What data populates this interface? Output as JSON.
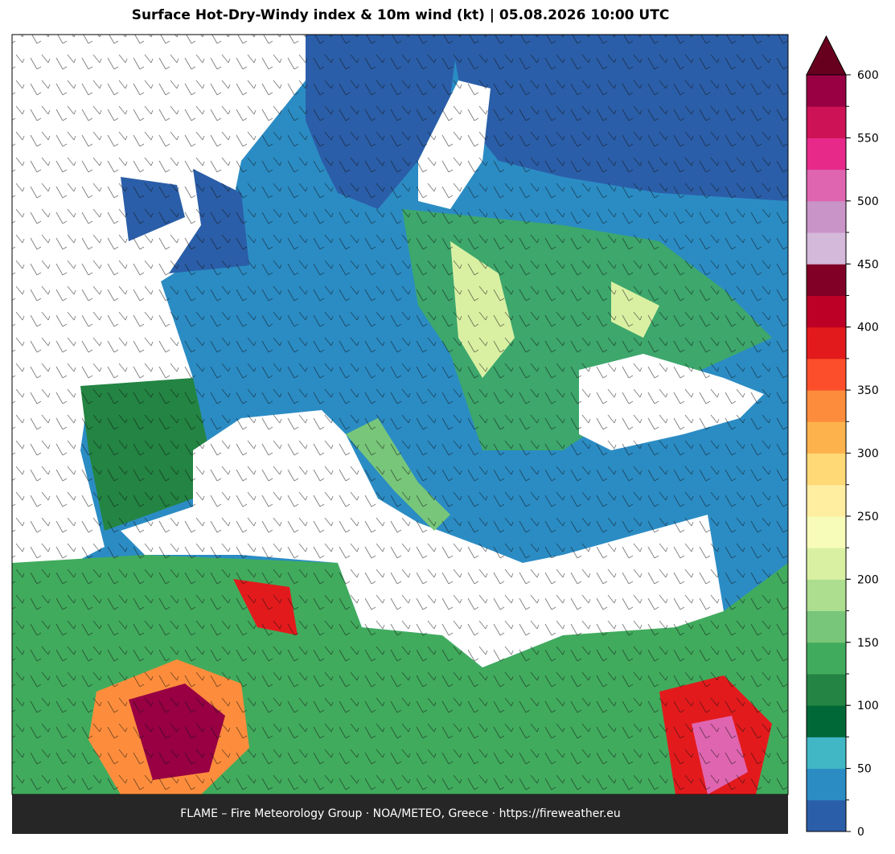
{
  "title": "Surface Hot-Dry-Windy index & 10m wind (kt)  |  05.08.2026 10:00 UTC",
  "footer": "FLAME – Fire Meteorology Group · NOA/METEO, Greece · https://fireweather.eu",
  "colorbar": {
    "lim": [
      0,
      600
    ],
    "ticks": [
      0,
      50,
      100,
      150,
      200,
      250,
      300,
      350,
      400,
      450,
      500,
      550,
      600
    ],
    "colors": [
      "#2b5ea8",
      "#2b8cc4",
      "#41b6c4",
      "#006837",
      "#238443",
      "#41ab5d",
      "#78c679",
      "#addd8e",
      "#d9f0a3",
      "#f7fcb9",
      "#ffeda0",
      "#fed976",
      "#feb24c",
      "#fd8d3c",
      "#fc4e2a",
      "#e31a1c",
      "#bd0026",
      "#800026",
      "#d4b9da",
      "#c994c7",
      "#df65b0",
      "#e7298a",
      "#ce1256",
      "#980043"
    ],
    "extend_color": "#67001f"
  }
}
